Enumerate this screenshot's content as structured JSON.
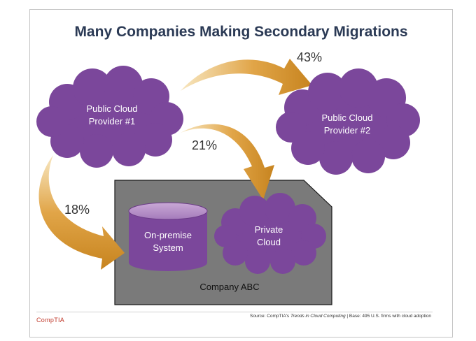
{
  "title": "Many Companies Making Secondary Migrations",
  "nodes": {
    "provider1": {
      "line1": "Public Cloud",
      "line2": "Provider #1"
    },
    "provider2": {
      "line1": "Public Cloud",
      "line2": "Provider #2"
    },
    "onprem": {
      "line1": "On-premise",
      "line2": "System"
    },
    "private_cloud": {
      "line1": "Private",
      "line2": "Cloud"
    },
    "company": "Company ABC"
  },
  "migrations": [
    {
      "from": "Public Cloud Provider #1",
      "to": "Public Cloud Provider #2",
      "label": "43%"
    },
    {
      "from": "Public Cloud Provider #1",
      "to": "Private Cloud",
      "label": "21%"
    },
    {
      "from": "Public Cloud Provider #1",
      "to": "On-premise System",
      "label": "18%"
    }
  ],
  "footer": {
    "logo": "CompTIA",
    "source_prefix": "Source: CompTIA's ",
    "source_title": "Trends in Cloud Computing",
    "source_suffix": " | Base: 495 U.S. firms with cloud adoption"
  },
  "colors": {
    "cloud_purple": "#7b479b",
    "arrow_orange": "#d8962e",
    "company_box": "#7a7a7a",
    "title_navy": "#2b3a55"
  }
}
